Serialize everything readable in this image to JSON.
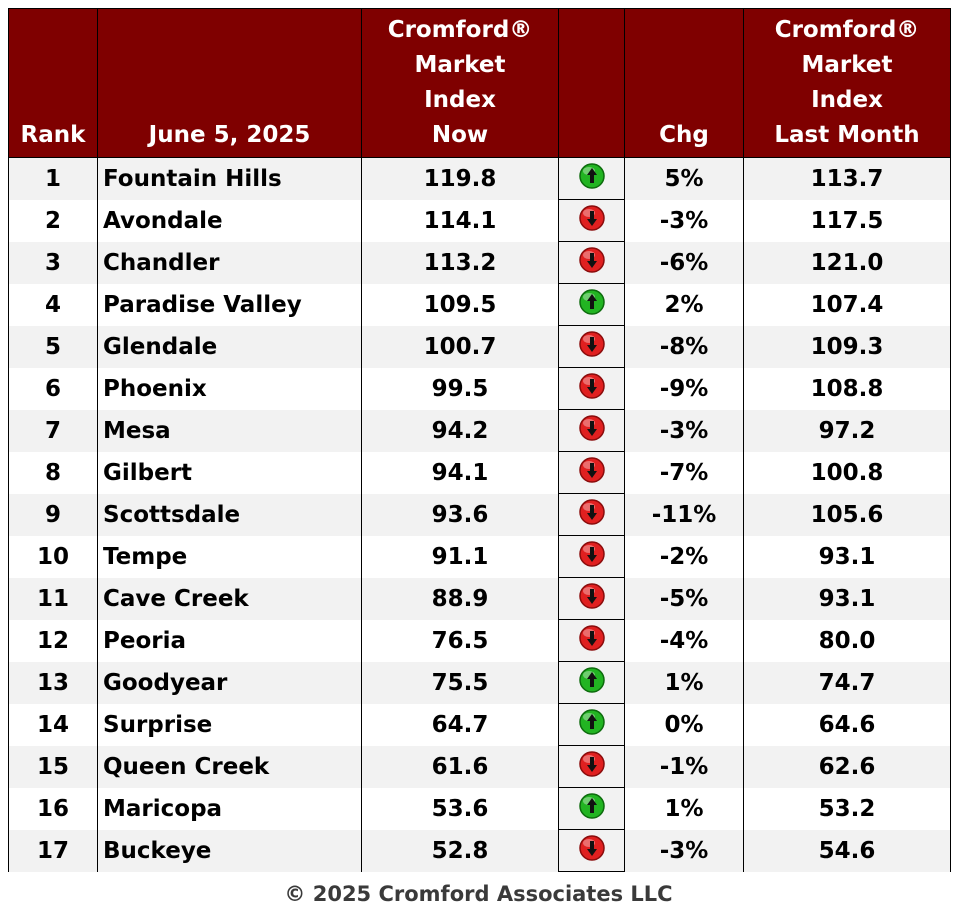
{
  "table": {
    "headers": {
      "rank": "Rank",
      "date": "June 5, 2025",
      "now": [
        "Cromford®",
        "Market",
        "Index",
        "Now"
      ],
      "arrow": "",
      "chg": "Chg",
      "last": [
        "Cromford®",
        "Market",
        "Index",
        "Last Month"
      ]
    },
    "rows": [
      {
        "rank": "1",
        "city": "Fountain Hills",
        "now": "119.8",
        "dir": "up",
        "chg": "5%",
        "last": "113.7"
      },
      {
        "rank": "2",
        "city": "Avondale",
        "now": "114.1",
        "dir": "down",
        "chg": "-3%",
        "last": "117.5"
      },
      {
        "rank": "3",
        "city": "Chandler",
        "now": "113.2",
        "dir": "down",
        "chg": "-6%",
        "last": "121.0"
      },
      {
        "rank": "4",
        "city": "Paradise Valley",
        "now": "109.5",
        "dir": "up",
        "chg": "2%",
        "last": "107.4"
      },
      {
        "rank": "5",
        "city": "Glendale",
        "now": "100.7",
        "dir": "down",
        "chg": "-8%",
        "last": "109.3"
      },
      {
        "rank": "6",
        "city": "Phoenix",
        "now": "99.5",
        "dir": "down",
        "chg": "-9%",
        "last": "108.8"
      },
      {
        "rank": "7",
        "city": "Mesa",
        "now": "94.2",
        "dir": "down",
        "chg": "-3%",
        "last": "97.2"
      },
      {
        "rank": "8",
        "city": "Gilbert",
        "now": "94.1",
        "dir": "down",
        "chg": "-7%",
        "last": "100.8"
      },
      {
        "rank": "9",
        "city": "Scottsdale",
        "now": "93.6",
        "dir": "down",
        "chg": "-11%",
        "last": "105.6"
      },
      {
        "rank": "10",
        "city": "Tempe",
        "now": "91.1",
        "dir": "down",
        "chg": "-2%",
        "last": "93.1"
      },
      {
        "rank": "11",
        "city": "Cave Creek",
        "now": "88.9",
        "dir": "down",
        "chg": "-5%",
        "last": "93.1"
      },
      {
        "rank": "12",
        "city": "Peoria",
        "now": "76.5",
        "dir": "down",
        "chg": "-4%",
        "last": "80.0"
      },
      {
        "rank": "13",
        "city": "Goodyear",
        "now": "75.5",
        "dir": "up",
        "chg": "1%",
        "last": "74.7"
      },
      {
        "rank": "14",
        "city": "Surprise",
        "now": "64.7",
        "dir": "up",
        "chg": "0%",
        "last": "64.6"
      },
      {
        "rank": "15",
        "city": "Queen Creek",
        "now": "61.6",
        "dir": "down",
        "chg": "-1%",
        "last": "62.6"
      },
      {
        "rank": "16",
        "city": "Maricopa",
        "now": "53.6",
        "dir": "up",
        "chg": "1%",
        "last": "53.2"
      },
      {
        "rank": "17",
        "city": "Buckeye",
        "now": "52.8",
        "dir": "down",
        "chg": "-3%",
        "last": "54.6"
      }
    ]
  },
  "chart_data": {
    "type": "table",
    "columns": [
      "Rank",
      "June 5, 2025",
      "Cromford® Market Index Now",
      "Chg",
      "Cromford® Market Index Last Month"
    ],
    "categories": [
      "Fountain Hills",
      "Avondale",
      "Chandler",
      "Paradise Valley",
      "Glendale",
      "Phoenix",
      "Mesa",
      "Gilbert",
      "Scottsdale",
      "Tempe",
      "Cave Creek",
      "Peoria",
      "Goodyear",
      "Surprise",
      "Queen Creek",
      "Maricopa",
      "Buckeye"
    ],
    "series": [
      {
        "name": "Cromford® Market Index Now",
        "values": [
          119.8,
          114.1,
          113.2,
          109.5,
          100.7,
          99.5,
          94.2,
          94.1,
          93.6,
          91.1,
          88.9,
          76.5,
          75.5,
          64.7,
          61.6,
          53.6,
          52.8
        ]
      },
      {
        "name": "Chg",
        "values": [
          5,
          -3,
          -6,
          2,
          -8,
          -9,
          -3,
          -7,
          -11,
          -2,
          -5,
          -4,
          1,
          0,
          -1,
          1,
          -3
        ]
      },
      {
        "name": "Cromford® Market Index Last Month",
        "values": [
          113.7,
          117.5,
          121.0,
          107.4,
          109.3,
          108.8,
          97.2,
          100.8,
          105.6,
          93.1,
          93.1,
          80.0,
          74.7,
          64.6,
          62.6,
          53.2,
          54.6
        ]
      }
    ]
  },
  "colors": {
    "header_bg": "#7f0000",
    "up_arrow": "#22b422",
    "down_arrow": "#e02020"
  },
  "icons": {
    "up": "green-up-arrow-icon",
    "down": "red-down-arrow-icon"
  },
  "footer": {
    "copyright": "© 2025 Cromford Associates LLC"
  }
}
